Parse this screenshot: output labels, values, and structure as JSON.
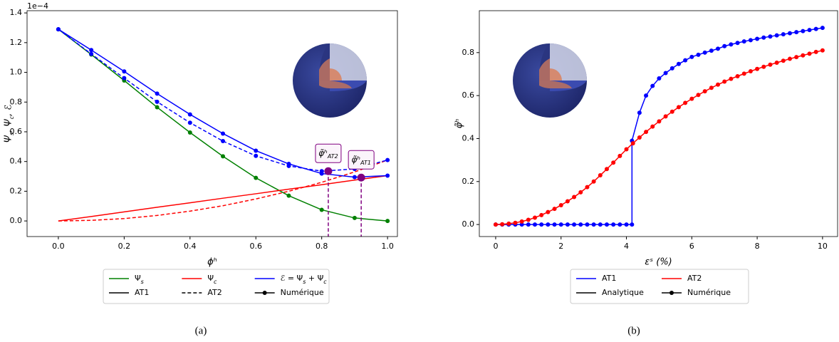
{
  "chart_data": [
    {
      "type": "line",
      "caption": "(a)",
      "xlabel": "ϕʰ",
      "ylabel": "Ψs, Ψc, ℰ",
      "offset_label": "1e−4",
      "xlim": [
        -0.095,
        1.03
      ],
      "ylim": [
        -0.105,
        1.415
      ],
      "xticks": [
        {
          "value": 0,
          "label": "0.0"
        },
        0.2,
        0.4,
        0.6,
        0.8,
        {
          "value": 1,
          "label": "1.0"
        }
      ],
      "yticks": [
        {
          "value": 0,
          "label": "0.0"
        },
        0.2,
        0.4,
        0.6,
        0.8,
        {
          "value": 1,
          "label": "1.0"
        },
        1.2,
        1.4
      ],
      "x": [
        0,
        0.1,
        0.2,
        0.3,
        0.4,
        0.5,
        0.6,
        0.7,
        0.8,
        0.9,
        1.0
      ],
      "series": [
        {
          "color": "#008000",
          "dashed": false,
          "markers": true,
          "values": [
            1.29,
            1.12,
            0.945,
            0.765,
            0.595,
            0.435,
            0.29,
            0.17,
            0.075,
            0.02,
            0.0
          ]
        },
        {
          "color": "#ff0000",
          "dashed": false,
          "markers": false,
          "values": [
            0,
            0.03,
            0.061,
            0.092,
            0.122,
            0.153,
            0.183,
            0.214,
            0.244,
            0.275,
            0.305
          ]
        },
        {
          "color": "#ff0000",
          "dashed": true,
          "markers": false,
          "values": [
            0,
            0.004,
            0.016,
            0.037,
            0.066,
            0.1025,
            0.148,
            0.2,
            0.26,
            0.33,
            0.41
          ]
        },
        {
          "color": "#0000ff",
          "dashed": false,
          "markers": true,
          "values": [
            1.29,
            1.15,
            1.006,
            0.857,
            0.717,
            0.588,
            0.473,
            0.384,
            0.319,
            0.295,
            0.305
          ]
        },
        {
          "color": "#0000ff",
          "dashed": true,
          "markers": true,
          "values": [
            1.29,
            1.124,
            0.961,
            0.802,
            0.661,
            0.5375,
            0.438,
            0.37,
            0.335,
            0.35,
            0.41
          ]
        }
      ],
      "annotations": [
        {
          "x": 0.82,
          "y": 0.335,
          "label": "φ̃ʰ",
          "sub": "AT2",
          "color": "#800080"
        },
        {
          "x": 0.92,
          "y": 0.292,
          "label": "φ̃ʰ",
          "sub": "AT1",
          "color": "#800080"
        }
      ],
      "legend": {
        "ncol": 3,
        "entries": [
          {
            "label": "Ψs",
            "color": "#008000",
            "dashed": false,
            "marker": false
          },
          {
            "label": "Ψc",
            "color": "#ff0000",
            "dashed": false,
            "marker": false
          },
          {
            "label": "ℰ = Ψs + Ψc",
            "color": "#0000ff",
            "dashed": false,
            "marker": false
          },
          {
            "label": "AT1",
            "color": "#000000",
            "dashed": false,
            "marker": false
          },
          {
            "label": "AT2",
            "color": "#000000",
            "dashed": true,
            "marker": false
          },
          {
            "label": "Numérique",
            "color": "#000000",
            "dashed": false,
            "marker": true
          }
        ]
      }
    },
    {
      "type": "line",
      "caption": "(b)",
      "xlabel": "εˢ (%)",
      "ylabel": "φ̃ʰ",
      "xlim": [
        -0.5,
        10.46
      ],
      "ylim": [
        -0.056,
        0.995
      ],
      "xticks": [
        0,
        2,
        4,
        6,
        8,
        10
      ],
      "yticks": [
        {
          "value": 0,
          "label": "0.0"
        },
        0.2,
        0.4,
        0.6,
        0.8
      ],
      "series": [
        {
          "color": "#0000ff",
          "dashed": false,
          "markers": true,
          "x": [
            0,
            0.2,
            0.4,
            0.6,
            0.8,
            1.0,
            1.2,
            1.4,
            1.6,
            1.8,
            2.0,
            2.2,
            2.4,
            2.6,
            2.8,
            3.0,
            3.2,
            3.4,
            3.6,
            3.8,
            4.0,
            4.17,
            4.17,
            4.4,
            4.6,
            4.8,
            5.0,
            5.2,
            5.4,
            5.6,
            5.8,
            6.0,
            6.2,
            6.4,
            6.6,
            6.8,
            7.0,
            7.2,
            7.4,
            7.6,
            7.8,
            8.0,
            8.2,
            8.4,
            8.6,
            8.8,
            9.0,
            9.2,
            9.4,
            9.6,
            9.8,
            10.0
          ],
          "values": [
            0,
            0,
            0,
            0,
            0,
            0,
            0,
            0,
            0,
            0,
            0,
            0,
            0,
            0,
            0,
            0,
            0,
            0,
            0,
            0,
            0,
            0,
            0.39,
            0.52,
            0.6,
            0.645,
            0.68,
            0.705,
            0.727,
            0.747,
            0.764,
            0.78,
            0.79,
            0.8,
            0.809,
            0.818,
            0.83,
            0.838,
            0.845,
            0.852,
            0.858,
            0.864,
            0.87,
            0.875,
            0.88,
            0.885,
            0.89,
            0.895,
            0.9,
            0.905,
            0.91,
            0.915
          ]
        },
        {
          "color": "#ff0000",
          "dashed": false,
          "markers": true,
          "x": [
            0,
            0.2,
            0.4,
            0.6,
            0.8,
            1.0,
            1.2,
            1.4,
            1.6,
            1.8,
            2.0,
            2.2,
            2.4,
            2.6,
            2.8,
            3.0,
            3.2,
            3.4,
            3.6,
            3.8,
            4.0,
            4.2,
            4.4,
            4.6,
            4.8,
            5.0,
            5.2,
            5.4,
            5.6,
            5.8,
            6.0,
            6.2,
            6.4,
            6.6,
            6.8,
            7.0,
            7.2,
            7.4,
            7.6,
            7.8,
            8.0,
            8.2,
            8.4,
            8.6,
            8.8,
            9.0,
            9.2,
            9.4,
            9.6,
            9.8,
            10.0
          ],
          "values": [
            0,
            0.001,
            0.004,
            0.008,
            0.014,
            0.022,
            0.032,
            0.044,
            0.058,
            0.073,
            0.09,
            0.108,
            0.128,
            0.15,
            0.174,
            0.2,
            0.229,
            0.258,
            0.288,
            0.319,
            0.35,
            0.378,
            0.405,
            0.431,
            0.456,
            0.48,
            0.503,
            0.525,
            0.546,
            0.566,
            0.585,
            0.603,
            0.62,
            0.636,
            0.651,
            0.665,
            0.678,
            0.69,
            0.702,
            0.713,
            0.724,
            0.734,
            0.744,
            0.753,
            0.762,
            0.771,
            0.779,
            0.787,
            0.795,
            0.803,
            0.81
          ]
        }
      ],
      "legend": {
        "ncol": 2,
        "entries": [
          {
            "label": "AT1",
            "color": "#0000ff",
            "dashed": false,
            "marker": false
          },
          {
            "label": "AT2",
            "color": "#ff0000",
            "dashed": false,
            "marker": false
          },
          {
            "label": "Analytique",
            "color": "#000000",
            "dashed": false,
            "marker": false
          },
          {
            "label": "Numérique",
            "color": "#000000",
            "dashed": false,
            "marker": true
          }
        ]
      }
    }
  ]
}
